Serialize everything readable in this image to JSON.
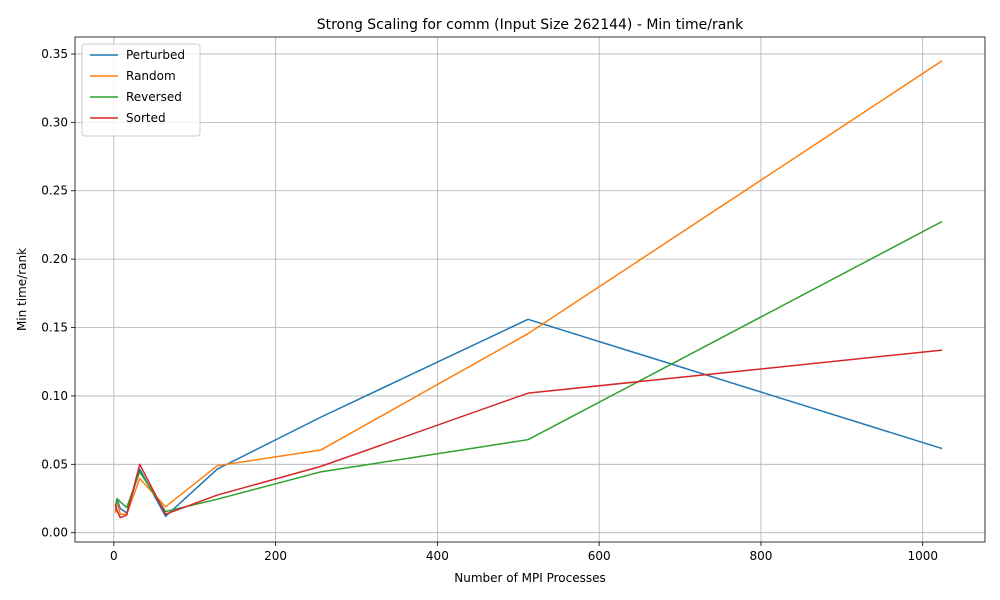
{
  "chart_data": {
    "type": "line",
    "title": "Strong Scaling for comm (Input Size 262144) - Min time/rank",
    "xlabel": "Number of MPI Processes",
    "ylabel": "Min time/rank",
    "xlim": [
      -48,
      1077
    ],
    "ylim": [
      -0.0068,
      0.3624
    ],
    "xticks": [
      0,
      200,
      400,
      600,
      800,
      1000
    ],
    "xtick_labels": [
      "0",
      "200",
      "400",
      "600",
      "800",
      "1000"
    ],
    "yticks": [
      0.0,
      0.05,
      0.1,
      0.15,
      0.2,
      0.25,
      0.3,
      0.35
    ],
    "ytick_labels": [
      "0.00",
      "0.05",
      "0.10",
      "0.15",
      "0.20",
      "0.25",
      "0.30",
      "0.35"
    ],
    "grid": true,
    "legend_position": "top-left",
    "x": [
      2,
      4,
      8,
      16,
      32,
      64,
      128,
      256,
      512,
      1024
    ],
    "series": [
      {
        "name": "Perturbed",
        "color": "#1f77b4",
        "values": [
          0.0155,
          0.0245,
          0.0175,
          0.0145,
          0.0465,
          0.012,
          0.0465,
          0.0845,
          0.156,
          0.0615
        ]
      },
      {
        "name": "Random",
        "color": "#ff7f0e",
        "values": [
          0.0145,
          0.022,
          0.0135,
          0.0135,
          0.0395,
          0.019,
          0.049,
          0.0605,
          0.1455,
          0.345
        ]
      },
      {
        "name": "Reversed",
        "color": "#2ca02c",
        "values": [
          0.0195,
          0.025,
          0.0225,
          0.0185,
          0.0445,
          0.0155,
          0.0245,
          0.0445,
          0.068,
          0.2275
        ]
      },
      {
        "name": "Sorted",
        "color": "#d62728",
        "values": [
          0.02,
          0.016,
          0.011,
          0.013,
          0.05,
          0.0135,
          0.0275,
          0.0485,
          0.102,
          0.1335
        ]
      }
    ]
  }
}
